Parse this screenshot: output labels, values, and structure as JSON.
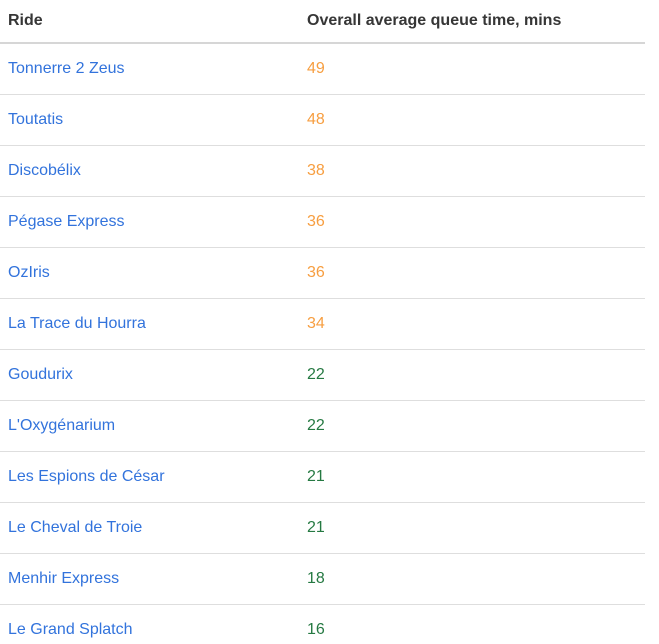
{
  "table": {
    "columns": [
      {
        "label": "Ride"
      },
      {
        "label": "Overall average queue time, mins"
      }
    ],
    "rows": [
      {
        "ride": "Tonnerre 2 Zeus",
        "queue_time": "49",
        "level": "high"
      },
      {
        "ride": "Toutatis",
        "queue_time": "48",
        "level": "high"
      },
      {
        "ride": "Discobélix",
        "queue_time": "38",
        "level": "high"
      },
      {
        "ride": "Pégase Express",
        "queue_time": "36",
        "level": "high"
      },
      {
        "ride": "OzIris",
        "queue_time": "36",
        "level": "high"
      },
      {
        "ride": "La Trace du Hourra",
        "queue_time": "34",
        "level": "high"
      },
      {
        "ride": "Goudurix",
        "queue_time": "22",
        "level": "low"
      },
      {
        "ride": "L'Oxygénarium",
        "queue_time": "22",
        "level": "low"
      },
      {
        "ride": "Les Espions de César",
        "queue_time": "21",
        "level": "low"
      },
      {
        "ride": "Le Cheval de Troie",
        "queue_time": "21",
        "level": "low"
      },
      {
        "ride": "Menhir Express",
        "queue_time": "18",
        "level": "low"
      },
      {
        "ride": "Le Grand Splatch",
        "queue_time": "16",
        "level": "low"
      }
    ]
  },
  "colors": {
    "link_blue": "#3273dc",
    "high_orange": "#f79e40",
    "low_green": "#257942",
    "header_text": "#363636",
    "row_border": "#dedede",
    "header_border": "#d6d6d6"
  }
}
